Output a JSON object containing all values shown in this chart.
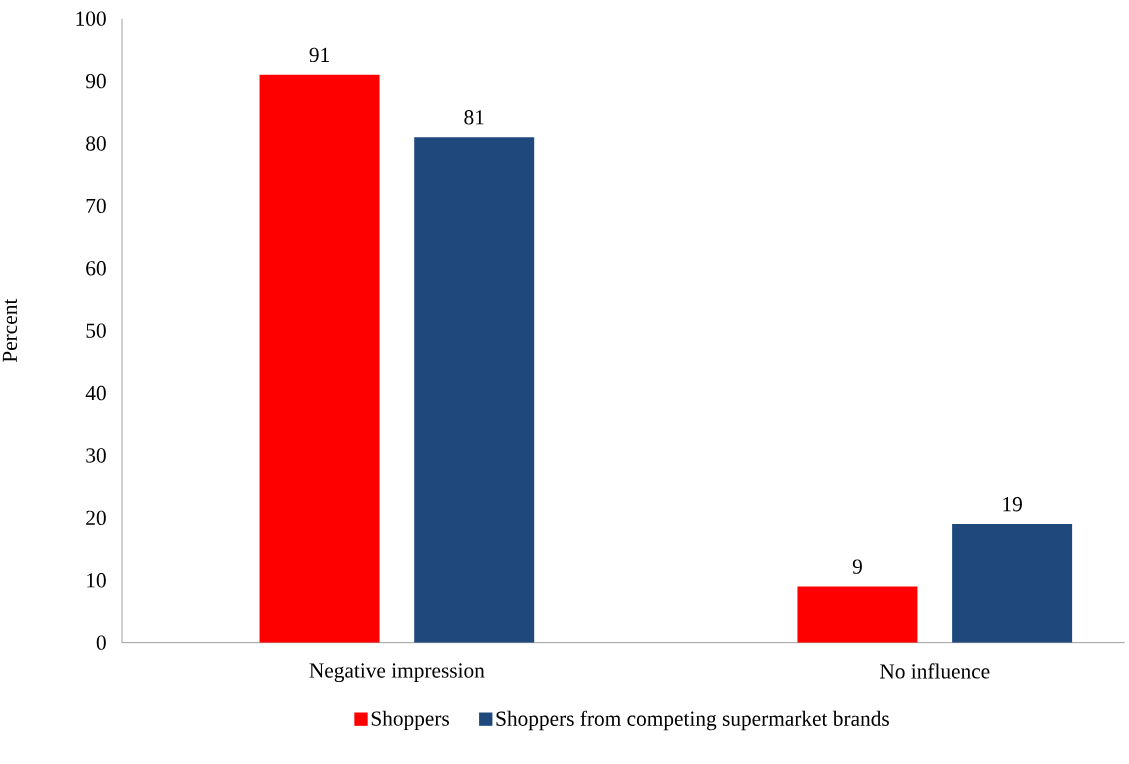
{
  "chart_data": {
    "type": "bar",
    "ylabel": "Percent",
    "categories": [
      "Negative impression",
      "No influence"
    ],
    "series": [
      {
        "name": "Shoppers",
        "color": "#ff0000",
        "values": [
          91,
          9
        ]
      },
      {
        "name": "Shoppers from competing supermarket brands",
        "color": "#1f497d",
        "values": [
          81,
          19
        ]
      }
    ],
    "ylim": [
      0,
      100
    ],
    "yticks": [
      0,
      10,
      20,
      30,
      40,
      50,
      60,
      70,
      80,
      90,
      100
    ],
    "grid": false,
    "legend": "bottom",
    "data_labels": true
  }
}
